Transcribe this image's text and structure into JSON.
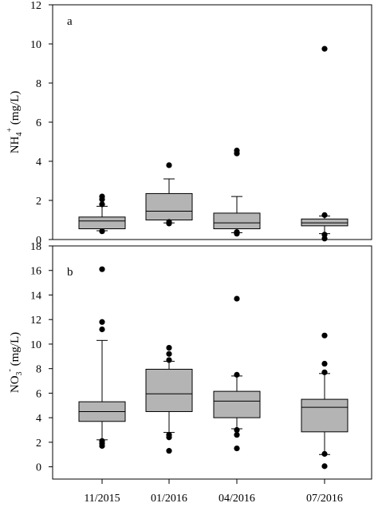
{
  "chart_data": [
    {
      "type": "box",
      "panel_label": "a",
      "ylabel": "NH4+ (mg/L)",
      "ylabel_parts": {
        "base": "NH",
        "sub": "4",
        "sup": "+",
        "unit": " (mg/L)"
      },
      "ylim": [
        0,
        12
      ],
      "yticks": [
        0,
        2,
        4,
        6,
        8,
        10,
        12
      ],
      "categories": [
        "11/2015",
        "01/2016",
        "04/2016",
        "07/2016"
      ],
      "boxes": [
        {
          "q1": 0.55,
          "median": 0.95,
          "q3": 1.15,
          "whisker_low": 0.45,
          "whisker_high": 1.7,
          "outliers": [
            0.42,
            1.8,
            2.05,
            2.2
          ]
        },
        {
          "q1": 1.0,
          "median": 1.45,
          "q3": 2.35,
          "whisker_low": 0.85,
          "whisker_high": 3.1,
          "outliers": [
            0.82,
            0.9,
            3.8
          ]
        },
        {
          "q1": 0.55,
          "median": 0.85,
          "q3": 1.35,
          "whisker_low": 0.35,
          "whisker_high": 2.2,
          "outliers": [
            0.3,
            0.38,
            4.4,
            4.55
          ]
        },
        {
          "q1": 0.7,
          "median": 0.85,
          "q3": 1.05,
          "whisker_low": 0.3,
          "whisker_high": 1.2,
          "outliers": [
            0.05,
            0.25,
            1.25,
            9.75
          ]
        }
      ]
    },
    {
      "type": "box",
      "panel_label": "b",
      "ylabel": "NO3- (mg/L)",
      "ylabel_parts": {
        "base": "NO",
        "sub": "3",
        "sup": "-",
        "unit": " (mg/L)"
      },
      "ylim": [
        -1,
        18
      ],
      "yticks": [
        0,
        2,
        4,
        6,
        8,
        10,
        12,
        14,
        16,
        18
      ],
      "categories": [
        "11/2015",
        "01/2016",
        "04/2016",
        "07/2016"
      ],
      "boxes": [
        {
          "q1": 3.7,
          "median": 4.5,
          "q3": 5.3,
          "whisker_low": 2.2,
          "whisker_high": 10.3,
          "outliers": [
            1.7,
            1.9,
            2.1,
            11.2,
            11.8,
            16.1
          ]
        },
        {
          "q1": 4.5,
          "median": 5.95,
          "q3": 7.95,
          "whisker_low": 2.8,
          "whisker_high": 8.6,
          "outliers": [
            1.3,
            2.4,
            2.6,
            8.7,
            9.2,
            9.7
          ]
        },
        {
          "q1": 4.0,
          "median": 5.35,
          "q3": 6.15,
          "whisker_low": 3.1,
          "whisker_high": 7.4,
          "outliers": [
            1.5,
            2.6,
            3.0,
            7.5,
            13.7
          ]
        },
        {
          "q1": 2.85,
          "median": 4.85,
          "q3": 5.5,
          "whisker_low": 1.0,
          "whisker_high": 7.6,
          "outliers": [
            0.05,
            1.05,
            7.7,
            8.4,
            10.7
          ]
        }
      ]
    }
  ]
}
